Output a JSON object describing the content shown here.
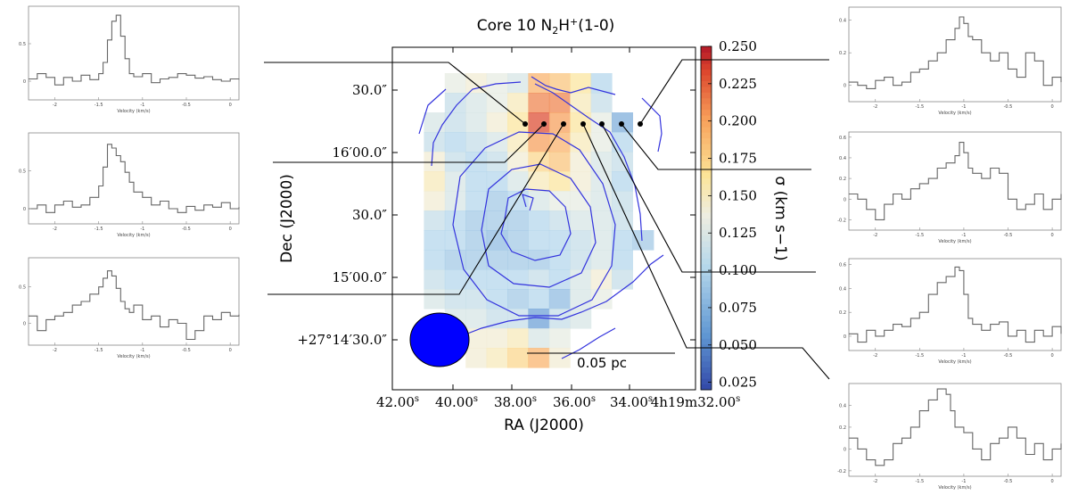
{
  "chart_data": [
    {
      "type": "heatmap",
      "title": "Core 10 N2H+(1-0)",
      "title_parts": {
        "pre": "Core 10 N",
        "sub": "2",
        "mid": "H",
        "sup": "+",
        "post": "(1-0)"
      },
      "xlabel": "RA (J2000)",
      "ylabel": "Dec (J2000)",
      "x_tick_labels": [
        "42.00",
        "40.00",
        "38.00",
        "36.00",
        "34.00",
        "4h19m32.00"
      ],
      "x_tick_suffix": "s",
      "y_tick_labels": [
        "30.0″",
        "16′00.0″",
        "30.0″",
        "15′00.0″",
        "+27°14′30.0″"
      ],
      "colorbar": {
        "label": "σ (km s−1)",
        "range": [
          0.02,
          0.25
        ],
        "ticks": [
          "0.250",
          "0.225",
          "0.200",
          "0.175",
          "0.150",
          "0.125",
          "0.100",
          "0.075",
          "0.050",
          "0.025"
        ]
      },
      "scalebar_label": "0.05 pc",
      "colors": {
        "contour": "#3333dd",
        "beam": "#0000ff"
      },
      "grid_cols": 12,
      "grid_rows": 15,
      "cells": [
        [
          null,
          null,
          0.13,
          0.14,
          0.13,
          0.12,
          0.19,
          0.18,
          0.16,
          0.1,
          null,
          null
        ],
        [
          null,
          null,
          0.11,
          0.12,
          0.13,
          0.15,
          0.21,
          0.21,
          0.15,
          0.11,
          null,
          null
        ],
        [
          null,
          0.12,
          0.11,
          0.12,
          0.14,
          0.16,
          0.23,
          0.2,
          0.16,
          0.13,
          0.07,
          null
        ],
        [
          null,
          0.11,
          0.1,
          0.11,
          0.12,
          0.15,
          0.2,
          0.19,
          0.15,
          0.13,
          0.1,
          null
        ],
        [
          null,
          0.14,
          0.11,
          0.1,
          0.11,
          0.14,
          0.17,
          0.18,
          0.14,
          0.12,
          0.11,
          null
        ],
        [
          null,
          0.15,
          0.12,
          0.1,
          0.1,
          0.12,
          0.15,
          0.16,
          0.14,
          0.12,
          0.1,
          null
        ],
        [
          null,
          0.14,
          0.12,
          0.1,
          0.09,
          0.1,
          0.12,
          0.13,
          0.13,
          0.12,
          0.11,
          null
        ],
        [
          null,
          0.11,
          0.1,
          0.09,
          0.09,
          0.09,
          0.1,
          0.11,
          0.12,
          0.12,
          0.11,
          null
        ],
        [
          null,
          0.1,
          0.1,
          0.09,
          0.08,
          0.09,
          0.1,
          0.1,
          0.11,
          0.12,
          0.1,
          0.09
        ],
        [
          null,
          0.1,
          0.09,
          0.09,
          0.09,
          0.09,
          0.09,
          0.1,
          0.11,
          0.12,
          0.1,
          null
        ],
        [
          null,
          0.11,
          0.1,
          0.1,
          0.1,
          0.1,
          0.11,
          0.1,
          0.12,
          0.14,
          0.11,
          null
        ],
        [
          null,
          0.12,
          0.11,
          0.11,
          0.1,
          0.09,
          0.1,
          0.08,
          0.12,
          0.13,
          null,
          null
        ],
        [
          null,
          null,
          0.12,
          0.12,
          0.11,
          0.11,
          0.06,
          0.11,
          0.12,
          null,
          null,
          null
        ],
        [
          null,
          null,
          0.13,
          0.14,
          0.14,
          0.15,
          0.12,
          0.13,
          null,
          null,
          null,
          null
        ],
        [
          null,
          null,
          null,
          0.14,
          0.15,
          0.17,
          0.19,
          0.14,
          null,
          null,
          null,
          null
        ]
      ]
    },
    {
      "type": "line",
      "panel": "left-1",
      "xlabel": "Velocity (km/s)",
      "x_ticks": [
        "-2",
        "-1.5",
        "-1",
        "-0.5",
        "0"
      ],
      "y_ticks": [
        "0",
        "0.5"
      ],
      "xlim": [
        -2.3,
        0.1
      ],
      "ylim": [
        -0.25,
        1.0
      ],
      "x": [
        -2.3,
        -2.2,
        -2.1,
        -2.0,
        -1.9,
        -1.8,
        -1.7,
        -1.6,
        -1.5,
        -1.45,
        -1.4,
        -1.35,
        -1.3,
        -1.25,
        -1.2,
        -1.15,
        -1.1,
        -1.0,
        -0.9,
        -0.8,
        -0.7,
        -0.6,
        -0.5,
        -0.4,
        -0.3,
        -0.2,
        -0.1,
        0.0,
        0.1
      ],
      "y": [
        0.03,
        0.1,
        0.05,
        -0.05,
        0.05,
        0.0,
        0.08,
        0.02,
        0.1,
        0.25,
        0.55,
        0.8,
        0.88,
        0.6,
        0.3,
        0.1,
        0.06,
        0.1,
        -0.02,
        0.03,
        0.05,
        0.1,
        0.08,
        0.04,
        0.06,
        0.02,
        0.0,
        0.03,
        0.02
      ]
    },
    {
      "type": "line",
      "panel": "left-2",
      "xlabel": "Velocity (km/s)",
      "x_ticks": [
        "-2",
        "-1.5",
        "-1",
        "-0.5",
        "0"
      ],
      "y_ticks": [
        "0",
        "0.5"
      ],
      "xlim": [
        -2.3,
        0.1
      ],
      "ylim": [
        -0.2,
        1.0
      ],
      "x": [
        -2.3,
        -2.2,
        -2.1,
        -2.0,
        -1.9,
        -1.8,
        -1.7,
        -1.6,
        -1.5,
        -1.45,
        -1.4,
        -1.35,
        -1.3,
        -1.25,
        -1.2,
        -1.15,
        -1.1,
        -1.0,
        -0.9,
        -0.8,
        -0.7,
        -0.6,
        -0.5,
        -0.4,
        -0.3,
        -0.2,
        -0.1,
        0.0,
        0.1
      ],
      "y": [
        0.0,
        0.05,
        -0.05,
        0.05,
        0.1,
        0.02,
        0.05,
        0.15,
        0.3,
        0.55,
        0.85,
        0.8,
        0.7,
        0.62,
        0.48,
        0.35,
        0.22,
        0.15,
        0.05,
        0.1,
        0.0,
        -0.05,
        0.03,
        -0.02,
        0.05,
        0.02,
        0.08,
        0.0,
        0.02
      ]
    },
    {
      "type": "line",
      "panel": "left-3",
      "xlabel": "Velocity (km/s)",
      "x_ticks": [
        "-2",
        "-1.5",
        "-1",
        "-0.5",
        "0"
      ],
      "y_ticks": [
        "0",
        "0.5"
      ],
      "xlim": [
        -2.3,
        0.1
      ],
      "ylim": [
        -0.3,
        0.9
      ],
      "x": [
        -2.3,
        -2.2,
        -2.1,
        -2.0,
        -1.9,
        -1.8,
        -1.7,
        -1.6,
        -1.5,
        -1.45,
        -1.4,
        -1.35,
        -1.3,
        -1.25,
        -1.2,
        -1.15,
        -1.1,
        -1.0,
        -0.9,
        -0.8,
        -0.7,
        -0.6,
        -0.5,
        -0.4,
        -0.3,
        -0.2,
        -0.1,
        0.0,
        0.1
      ],
      "y": [
        0.1,
        -0.1,
        0.05,
        0.1,
        0.15,
        0.25,
        0.3,
        0.4,
        0.5,
        0.62,
        0.72,
        0.65,
        0.48,
        0.3,
        0.2,
        0.15,
        0.25,
        0.05,
        0.1,
        -0.05,
        0.05,
        0.0,
        -0.22,
        -0.1,
        0.1,
        0.05,
        0.15,
        0.1,
        0.12
      ]
    },
    {
      "type": "line",
      "panel": "right-1",
      "xlabel": "Velocity (km/s)",
      "x_ticks": [
        "-2",
        "-1.5",
        "-1",
        "-0.5",
        "0"
      ],
      "y_ticks": [
        "0",
        "0.2",
        "0.4"
      ],
      "xlim": [
        -2.3,
        0.1
      ],
      "ylim": [
        -0.1,
        0.48
      ],
      "x": [
        -2.3,
        -2.2,
        -2.1,
        -2.0,
        -1.9,
        -1.8,
        -1.7,
        -1.6,
        -1.5,
        -1.4,
        -1.3,
        -1.2,
        -1.1,
        -1.05,
        -1.0,
        -0.95,
        -0.9,
        -0.8,
        -0.7,
        -0.6,
        -0.5,
        -0.4,
        -0.3,
        -0.2,
        -0.1,
        0.0,
        0.1
      ],
      "y": [
        0.02,
        0.0,
        -0.02,
        0.03,
        0.05,
        0.0,
        0.02,
        0.08,
        0.1,
        0.15,
        0.2,
        0.28,
        0.35,
        0.42,
        0.38,
        0.3,
        0.28,
        0.2,
        0.15,
        0.2,
        0.1,
        0.05,
        0.2,
        0.15,
        0.0,
        0.05,
        0.02
      ]
    },
    {
      "type": "line",
      "panel": "right-2",
      "xlabel": "Velocity (km/s)",
      "x_ticks": [
        "-2",
        "-1.5",
        "-1",
        "-0.5",
        "0"
      ],
      "y_ticks": [
        "-0.2",
        "0",
        "0.2",
        "0.4",
        "0.6"
      ],
      "xlim": [
        -2.3,
        0.1
      ],
      "ylim": [
        -0.3,
        0.65
      ],
      "x": [
        -2.3,
        -2.2,
        -2.1,
        -2.0,
        -1.9,
        -1.8,
        -1.7,
        -1.6,
        -1.5,
        -1.4,
        -1.3,
        -1.2,
        -1.1,
        -1.05,
        -1.0,
        -0.95,
        -0.9,
        -0.8,
        -0.7,
        -0.6,
        -0.5,
        -0.4,
        -0.3,
        -0.2,
        -0.1,
        0.0,
        0.1
      ],
      "y": [
        0.05,
        0.0,
        -0.1,
        -0.2,
        -0.05,
        0.05,
        0.0,
        0.1,
        0.15,
        0.2,
        0.3,
        0.35,
        0.42,
        0.55,
        0.45,
        0.3,
        0.25,
        0.2,
        0.3,
        0.25,
        0.0,
        -0.1,
        -0.05,
        0.05,
        -0.1,
        0.0,
        0.05
      ]
    },
    {
      "type": "line",
      "panel": "right-3",
      "xlabel": "Velocity (km/s)",
      "x_ticks": [
        "-2",
        "-1.5",
        "-1",
        "-0.5",
        "0"
      ],
      "y_ticks": [
        "0",
        "0.2",
        "0.4",
        "0.6"
      ],
      "xlim": [
        -2.3,
        0.1
      ],
      "ylim": [
        -0.12,
        0.65
      ],
      "x": [
        -2.3,
        -2.2,
        -2.1,
        -2.0,
        -1.9,
        -1.8,
        -1.7,
        -1.6,
        -1.5,
        -1.4,
        -1.3,
        -1.2,
        -1.1,
        -1.05,
        -1.0,
        -0.95,
        -0.9,
        -0.8,
        -0.7,
        -0.6,
        -0.5,
        -0.4,
        -0.3,
        -0.2,
        -0.1,
        0.0,
        0.1
      ],
      "y": [
        0.02,
        -0.05,
        0.05,
        0.0,
        0.05,
        0.1,
        0.08,
        0.15,
        0.2,
        0.35,
        0.45,
        0.5,
        0.58,
        0.55,
        0.35,
        0.15,
        0.1,
        0.05,
        0.1,
        0.12,
        0.0,
        0.05,
        -0.05,
        0.05,
        0.0,
        0.08,
        0.02
      ]
    },
    {
      "type": "line",
      "panel": "right-4",
      "xlabel": "Velocity (km/s)",
      "x_ticks": [
        "-2",
        "-1.5",
        "-1",
        "-0.5",
        "0"
      ],
      "y_ticks": [
        "-0.2",
        "0",
        "0.2",
        "0.4"
      ],
      "xlim": [
        -2.3,
        0.1
      ],
      "ylim": [
        -0.25,
        0.6
      ],
      "x": [
        -2.3,
        -2.2,
        -2.1,
        -2.0,
        -1.9,
        -1.8,
        -1.7,
        -1.6,
        -1.5,
        -1.4,
        -1.3,
        -1.25,
        -1.2,
        -1.15,
        -1.1,
        -1.0,
        -0.9,
        -0.8,
        -0.7,
        -0.6,
        -0.5,
        -0.4,
        -0.3,
        -0.2,
        -0.1,
        0.0,
        0.1
      ],
      "y": [
        0.1,
        0.0,
        -0.1,
        -0.15,
        -0.1,
        0.05,
        0.1,
        0.2,
        0.35,
        0.45,
        0.55,
        0.55,
        0.5,
        0.35,
        0.2,
        0.15,
        0.0,
        -0.1,
        0.05,
        0.1,
        0.2,
        0.1,
        -0.05,
        0.05,
        -0.1,
        0.0,
        0.05
      ]
    }
  ]
}
